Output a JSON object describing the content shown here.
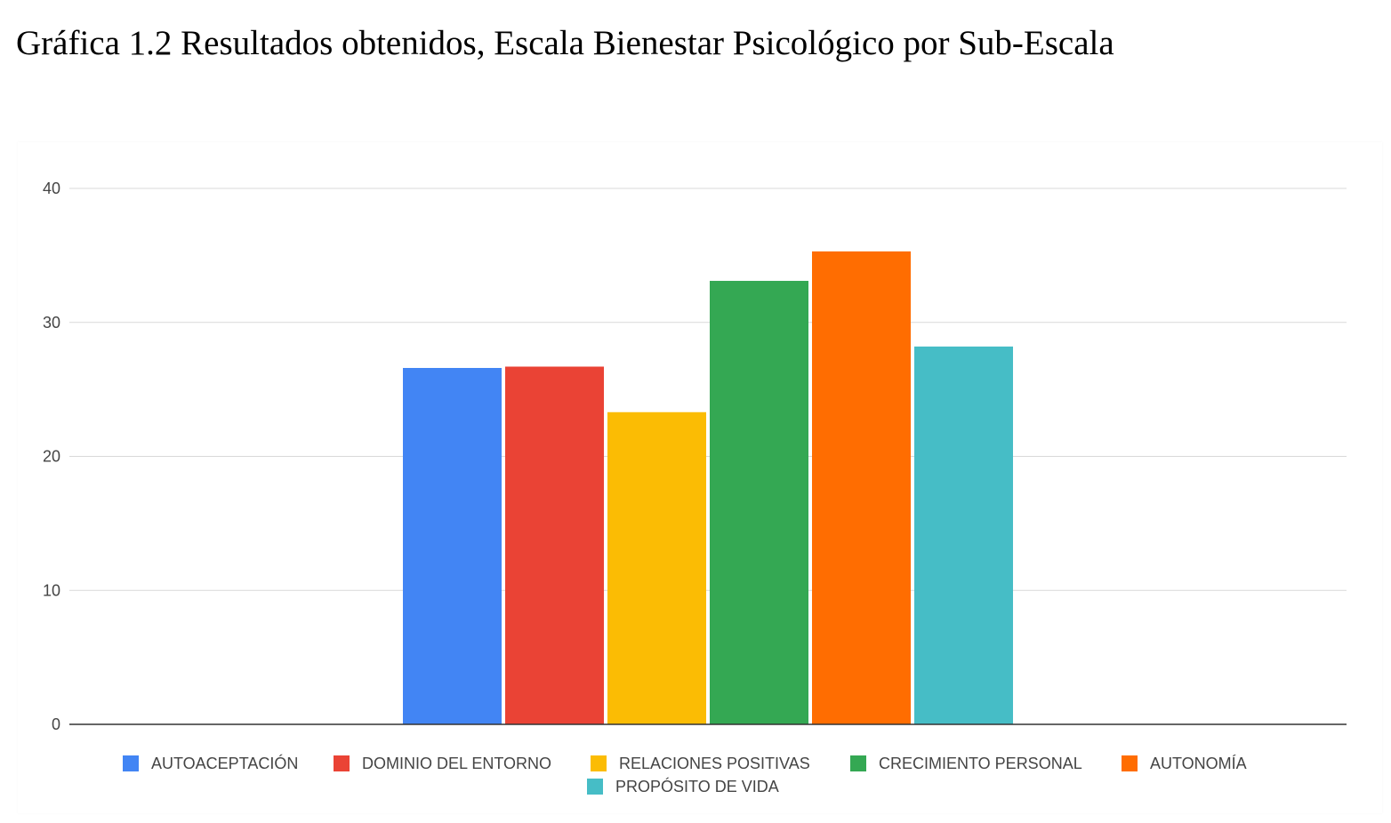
{
  "figure": {
    "title": "Gráfica 1.2 Resultados obtenidos, Escala Bienestar Psicológico por Sub-Escala"
  },
  "chart_data": {
    "type": "bar",
    "title": "",
    "xlabel": "",
    "ylabel": "",
    "ylim": [
      0,
      40
    ],
    "yticks": [
      0,
      10,
      20,
      30,
      40
    ],
    "grid": true,
    "legend_position": "bottom",
    "categories": [
      ""
    ],
    "series": [
      {
        "name": "AUTOACEPTACIÓN",
        "color": "#4285f4",
        "values": [
          26.6
        ]
      },
      {
        "name": "DOMINIO DEL ENTORNO",
        "color": "#ea4335",
        "values": [
          26.7
        ]
      },
      {
        "name": "RELACIONES POSITIVAS",
        "color": "#fbbc04",
        "values": [
          23.3
        ]
      },
      {
        "name": "CRECIMIENTO PERSONAL",
        "color": "#34a853",
        "values": [
          33.1
        ]
      },
      {
        "name": "AUTONOMÍA",
        "color": "#ff6d01",
        "values": [
          35.3
        ]
      },
      {
        "name": "PROPÓSITO DE VIDA",
        "color": "#46bdc6",
        "values": [
          28.2
        ]
      }
    ]
  }
}
